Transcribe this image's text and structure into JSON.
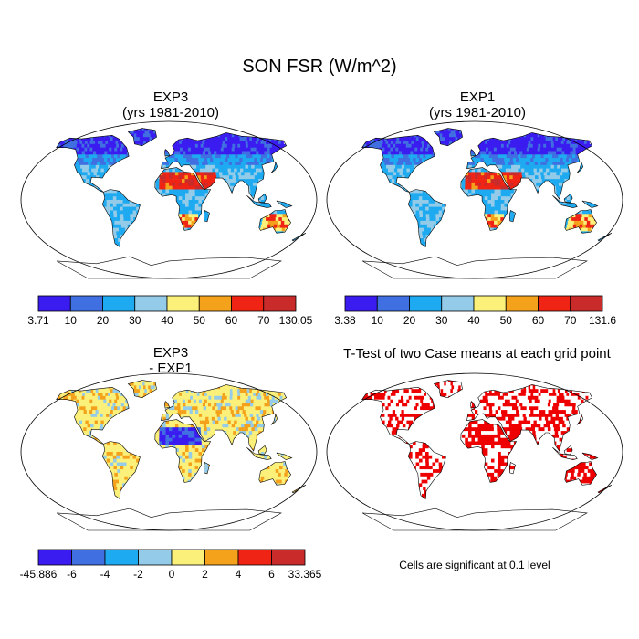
{
  "main_title": "SON FSR (W/m^2)",
  "panels": [
    {
      "title": "EXP3",
      "subtitle": "(yrs 1981-2010)",
      "kind": "field"
    },
    {
      "title": "EXP1",
      "subtitle": "(yrs 1981-2010)",
      "kind": "field"
    },
    {
      "title": "EXP3",
      "subtitle": "- EXP1",
      "kind": "difference"
    },
    {
      "title": "T-Test of two Case means at each grid point",
      "subtitle": "",
      "kind": "significance"
    }
  ],
  "colorbars": [
    {
      "colors": [
        "#3b1cf0",
        "#3f6fe0",
        "#1eaaf0",
        "#93cbe8",
        "#faf07a",
        "#f4a21c",
        "#f02414",
        "#c92b2b"
      ],
      "labels": [
        "3.71",
        "10",
        "20",
        "30",
        "40",
        "50",
        "60",
        "70",
        "130.05"
      ]
    },
    {
      "colors": [
        "#3b1cf0",
        "#3f6fe0",
        "#1eaaf0",
        "#93cbe8",
        "#faf07a",
        "#f4a21c",
        "#f02414",
        "#c92b2b"
      ],
      "labels": [
        "3.38",
        "10",
        "20",
        "30",
        "40",
        "50",
        "60",
        "70",
        "131.6"
      ]
    },
    {
      "colors": [
        "#3b1cf0",
        "#3f6fe0",
        "#1eaaf0",
        "#93cbe8",
        "#faf07a",
        "#f4a21c",
        "#f02414",
        "#c92b2b"
      ],
      "labels": [
        "-45.886",
        "-6",
        "-4",
        "-2",
        "0",
        "2",
        "4",
        "6",
        "33.365"
      ]
    }
  ],
  "significance_note": "Cells are significant at 0.1 level",
  "significance_color": "#ee0000"
}
